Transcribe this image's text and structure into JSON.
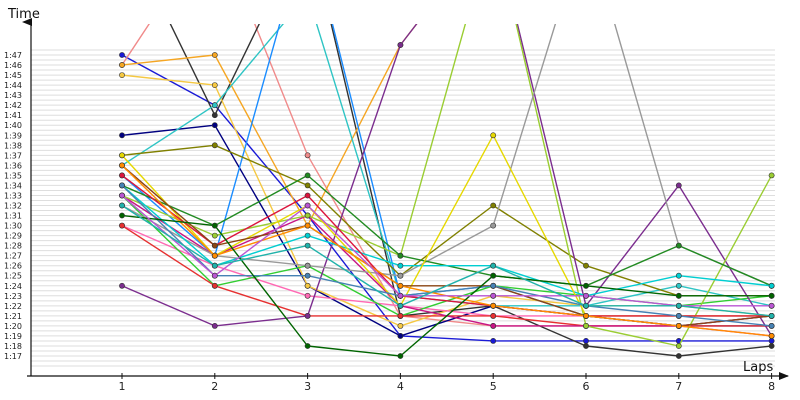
{
  "chart_data": {
    "type": "line",
    "xlabel": "Laps",
    "ylabel": "Time",
    "x": [
      1,
      2,
      3,
      4,
      5,
      6,
      7,
      8
    ],
    "x_tick_labels": [
      "1",
      "2",
      "3",
      "4",
      "5",
      "6",
      "7",
      "8"
    ],
    "ylim_seconds": [
      76,
      108
    ],
    "y_tick_labels": [
      "1:17",
      "1:18",
      "1:19",
      "1:20",
      "1:21",
      "1:22",
      "1:23",
      "1:24",
      "1:25",
      "1:26",
      "1:27",
      "1:28",
      "1:29",
      "1:30",
      "1:31",
      "1:32",
      "1:33",
      "1:34",
      "1:35",
      "1:36",
      "1:37",
      "1:38",
      "1:39",
      "1:40",
      "1:41",
      "1:42",
      "1:43",
      "1:44",
      "1:45",
      "1:46",
      "1:47"
    ],
    "grid": true,
    "series": [
      {
        "color": "#1a1ad6",
        "values": [
          107,
          102,
          91,
          79,
          78.5,
          78.5,
          78.5,
          78.5
        ]
      },
      {
        "color": "#f08a8a",
        "values": [
          106,
          120,
          97,
          81,
          80,
          80,
          80,
          79
        ]
      },
      {
        "color": "#333333",
        "values": [
          120,
          101,
          120,
          81,
          82,
          78,
          77,
          78
        ]
      },
      {
        "color": "#000080",
        "values": [
          99,
          100,
          84,
          79,
          82,
          81,
          80,
          80
        ]
      },
      {
        "color": "#f5c842",
        "values": [
          105,
          104,
          84,
          80,
          83,
          82,
          82,
          81
        ]
      },
      {
        "color": "#f5a623",
        "values": [
          106,
          107,
          90,
          108,
          120,
          120,
          120,
          120
        ]
      },
      {
        "color": "#2ec4c4",
        "values": [
          96,
          102,
          113,
          83,
          82,
          82,
          84,
          82
        ]
      },
      {
        "color": "#1a8cff",
        "values": [
          95,
          87,
          120,
          83,
          84,
          81,
          80,
          81
        ]
      },
      {
        "color": "#808000",
        "values": [
          97,
          98,
          94,
          85,
          92,
          86,
          83,
          83
        ]
      },
      {
        "color": "#ff69b4",
        "values": [
          90,
          86,
          83,
          82,
          81,
          81,
          80,
          79
        ]
      },
      {
        "color": "#32cd32",
        "values": [
          93,
          84,
          86,
          81,
          84,
          83,
          82,
          83
        ]
      },
      {
        "color": "#e63030",
        "values": [
          90,
          84,
          81,
          81,
          81,
          80,
          80,
          80
        ]
      },
      {
        "color": "#c71585",
        "values": [
          93,
          87,
          91,
          82,
          80,
          80,
          80,
          81
        ]
      },
      {
        "color": "#7b2d8e",
        "values": [
          84,
          80,
          81,
          108,
          120,
          82,
          94,
          79
        ]
      },
      {
        "color": "#9acd32",
        "values": [
          93,
          89,
          91,
          87,
          120,
          80,
          78,
          95
        ]
      },
      {
        "color": "#999999",
        "values": [
          92,
          87,
          86,
          85,
          90,
          120,
          88,
          84
        ]
      },
      {
        "color": "#228b22",
        "values": [
          94,
          90,
          95,
          87,
          85,
          84,
          88,
          84
        ]
      },
      {
        "color": "#00ced1",
        "values": [
          94,
          86,
          89,
          86,
          86,
          83,
          85,
          84
        ]
      },
      {
        "color": "#e6d800",
        "values": [
          97,
          87,
          92,
          82,
          99,
          81,
          81,
          81
        ]
      },
      {
        "color": "#dc143c",
        "values": [
          95,
          88,
          93,
          83,
          82,
          81,
          81,
          81
        ]
      },
      {
        "color": "#8b4513",
        "values": [
          96,
          88,
          90,
          84,
          84,
          81,
          80,
          81
        ]
      },
      {
        "color": "#4682b4",
        "values": [
          94,
          85,
          85,
          83,
          84,
          82,
          81,
          80
        ]
      },
      {
        "color": "#ff8c00",
        "values": [
          96,
          87,
          90,
          84,
          82,
          81,
          80,
          79
        ]
      },
      {
        "color": "#006400",
        "values": [
          91,
          90,
          78,
          77,
          85,
          84,
          83,
          83
        ]
      },
      {
        "color": "#ba55d3",
        "values": [
          93,
          85,
          92,
          83,
          83,
          83,
          82,
          82
        ]
      },
      {
        "color": "#20b2aa",
        "values": [
          92,
          86,
          88,
          82,
          86,
          82,
          82,
          81
        ]
      }
    ]
  }
}
